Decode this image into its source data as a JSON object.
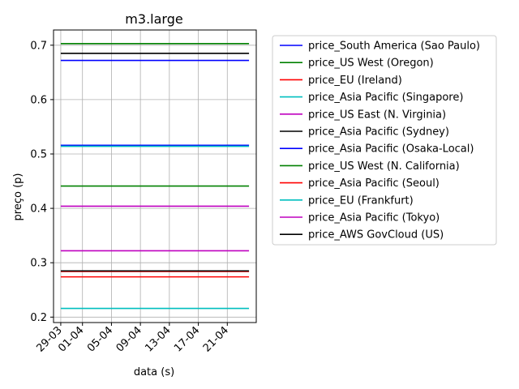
{
  "chart_data": {
    "type": "line",
    "title": "m3.large",
    "xlabel": "data (s)",
    "ylabel": "preço (p)",
    "x_ticks": [
      "29-03",
      "01-04",
      "05-04",
      "09-04",
      "13-04",
      "17-04",
      "21-04"
    ],
    "x_range": [
      "2017-03-28",
      "2017-04-25"
    ],
    "line_span": [
      "2017-03-29",
      "2017-04-24"
    ],
    "ylim": [
      0.19,
      0.728
    ],
    "y_ticks": [
      "0.2",
      "0.3",
      "0.4",
      "0.5",
      "0.6",
      "0.7"
    ],
    "grid": true,
    "legend_position": "outside-right",
    "series": [
      {
        "name": "price_South America (Sao Paulo)",
        "color": "#0000ff",
        "value": 0.672
      },
      {
        "name": "price_US West (Oregon)",
        "color": "#008000",
        "value": 0.703
      },
      {
        "name": "price_EU (Ireland)",
        "color": "#ff0000",
        "value": 0.274
      },
      {
        "name": "price_Asia Pacific (Singapore)",
        "color": "#00bfbf",
        "value": 0.216
      },
      {
        "name": "price_US East (N. Virginia)",
        "color": "#bf00bf",
        "value": 0.404
      },
      {
        "name": "price_Asia Pacific (Sydney)",
        "color": "#000000",
        "value": 0.685
      },
      {
        "name": "price_Asia Pacific (Osaka-Local)",
        "color": "#0000ff",
        "value": 0.516
      },
      {
        "name": "price_US West (N. California)",
        "color": "#008000",
        "value": 0.441
      },
      {
        "name": "price_Asia Pacific (Seoul)",
        "color": "#ff0000",
        "value": 0.284
      },
      {
        "name": "price_EU (Frankfurt)",
        "color": "#00bfbf",
        "value": 0.514
      },
      {
        "name": "price_Asia Pacific (Tokyo)",
        "color": "#bf00bf",
        "value": 0.322
      },
      {
        "name": "price_AWS GovCloud (US)",
        "color": "#000000",
        "value": 0.285
      }
    ]
  }
}
